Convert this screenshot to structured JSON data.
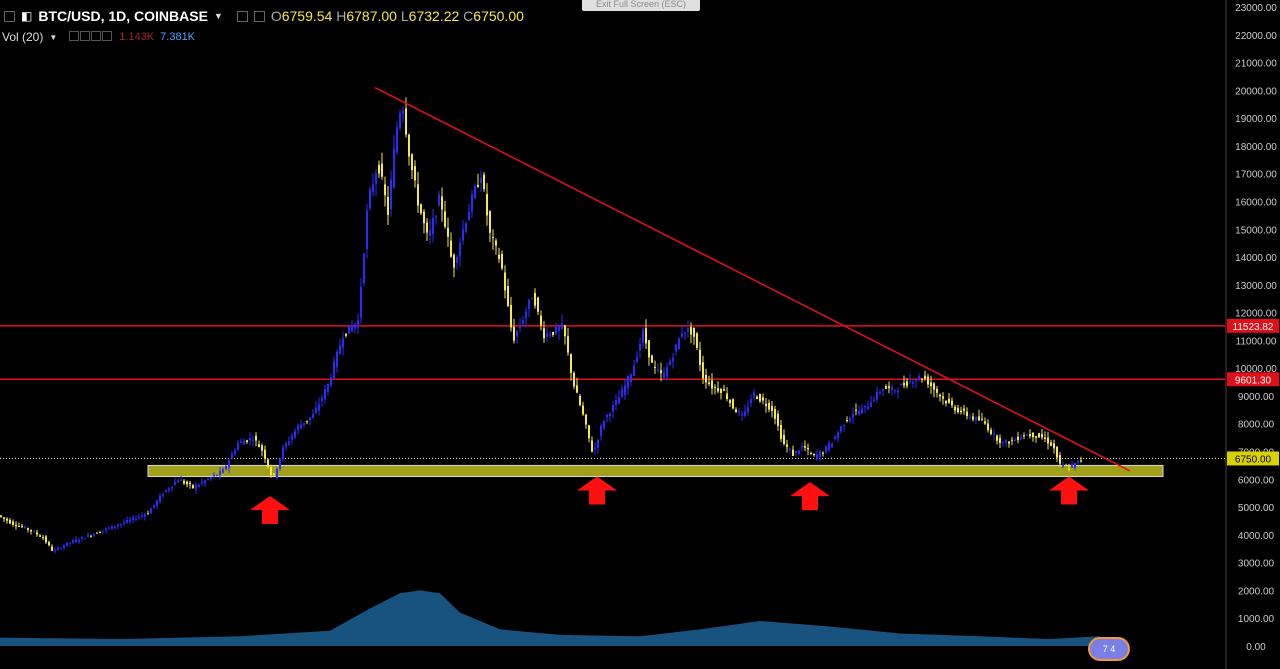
{
  "header": {
    "symbol": "BTC/USD, 1D, COINBASE",
    "open_key": "O",
    "open": "6759.54",
    "high_key": "H",
    "high": "6787.00",
    "low_key": "L",
    "low": "6732.22",
    "close_key": "C",
    "close": "6750.00",
    "volume_label": "Vol (20)",
    "volume_value_1": "1.143K",
    "volume_value_2": "7.381K"
  },
  "exit_fullscreen": "Exit Full Screen (ESC)",
  "colors": {
    "background": "#000000",
    "up_candle": "#2b2bff",
    "down_candle": "#f4e94a",
    "resistance_line": "#e0101b",
    "support_zone": "#bdbd1f",
    "arrow": "#ff1010",
    "volume_area": "#1f6fa8"
  },
  "chart_data": {
    "type": "line",
    "title": "",
    "xlabel": "",
    "ylabel": "",
    "ylim": [
      0,
      23000
    ],
    "y_ticks": [
      "0.00",
      "1000.00",
      "2000.00",
      "3000.00",
      "4000.00",
      "5000.00",
      "6000.00",
      "7000.00",
      "8000.00",
      "9000.00",
      "10000.00",
      "11000.00",
      "12000.00",
      "13000.00",
      "14000.00",
      "15000.00",
      "16000.00",
      "17000.00",
      "18000.00",
      "19000.00",
      "20000.00",
      "21000.00",
      "22000.00",
      "23000.00"
    ],
    "price_series": [
      {
        "t": 0,
        "p": 4700
      },
      {
        "t": 15,
        "p": 4400
      },
      {
        "t": 30,
        "p": 4200
      },
      {
        "t": 45,
        "p": 3900
      },
      {
        "t": 55,
        "p": 3400
      },
      {
        "t": 70,
        "p": 3700
      },
      {
        "t": 85,
        "p": 3900
      },
      {
        "t": 100,
        "p": 4100
      },
      {
        "t": 115,
        "p": 4300
      },
      {
        "t": 130,
        "p": 4500
      },
      {
        "t": 150,
        "p": 4800
      },
      {
        "t": 165,
        "p": 5500
      },
      {
        "t": 180,
        "p": 6000
      },
      {
        "t": 195,
        "p": 5700
      },
      {
        "t": 210,
        "p": 6000
      },
      {
        "t": 225,
        "p": 6300
      },
      {
        "t": 240,
        "p": 7300
      },
      {
        "t": 255,
        "p": 7500
      },
      {
        "t": 265,
        "p": 7000
      },
      {
        "t": 275,
        "p": 6000
      },
      {
        "t": 285,
        "p": 7100
      },
      {
        "t": 300,
        "p": 7900
      },
      {
        "t": 315,
        "p": 8300
      },
      {
        "t": 330,
        "p": 9400
      },
      {
        "t": 345,
        "p": 11200
      },
      {
        "t": 360,
        "p": 11700
      },
      {
        "t": 370,
        "p": 16000
      },
      {
        "t": 380,
        "p": 17400
      },
      {
        "t": 390,
        "p": 15600
      },
      {
        "t": 398,
        "p": 18500
      },
      {
        "t": 404,
        "p": 19700
      },
      {
        "t": 412,
        "p": 17500
      },
      {
        "t": 420,
        "p": 16000
      },
      {
        "t": 430,
        "p": 14600
      },
      {
        "t": 442,
        "p": 16200
      },
      {
        "t": 455,
        "p": 13600
      },
      {
        "t": 465,
        "p": 15000
      },
      {
        "t": 475,
        "p": 16200
      },
      {
        "t": 483,
        "p": 17000
      },
      {
        "t": 492,
        "p": 14800
      },
      {
        "t": 503,
        "p": 13800
      },
      {
        "t": 515,
        "p": 11000
      },
      {
        "t": 525,
        "p": 11800
      },
      {
        "t": 535,
        "p": 12700
      },
      {
        "t": 545,
        "p": 11200
      },
      {
        "t": 555,
        "p": 11300
      },
      {
        "t": 565,
        "p": 11500
      },
      {
        "t": 575,
        "p": 9500
      },
      {
        "t": 585,
        "p": 8300
      },
      {
        "t": 595,
        "p": 6900
      },
      {
        "t": 605,
        "p": 8100
      },
      {
        "t": 615,
        "p": 8600
      },
      {
        "t": 625,
        "p": 9200
      },
      {
        "t": 635,
        "p": 10000
      },
      {
        "t": 645,
        "p": 11300
      },
      {
        "t": 655,
        "p": 10000
      },
      {
        "t": 665,
        "p": 9700
      },
      {
        "t": 675,
        "p": 10500
      },
      {
        "t": 685,
        "p": 11400
      },
      {
        "t": 695,
        "p": 11300
      },
      {
        "t": 705,
        "p": 9700
      },
      {
        "t": 715,
        "p": 9300
      },
      {
        "t": 725,
        "p": 9200
      },
      {
        "t": 735,
        "p": 8600
      },
      {
        "t": 745,
        "p": 8200
      },
      {
        "t": 755,
        "p": 9100
      },
      {
        "t": 765,
        "p": 8800
      },
      {
        "t": 775,
        "p": 8500
      },
      {
        "t": 785,
        "p": 7300
      },
      {
        "t": 795,
        "p": 6900
      },
      {
        "t": 805,
        "p": 7200
      },
      {
        "t": 815,
        "p": 6800
      },
      {
        "t": 825,
        "p": 7000
      },
      {
        "t": 835,
        "p": 7400
      },
      {
        "t": 845,
        "p": 8000
      },
      {
        "t": 855,
        "p": 8400
      },
      {
        "t": 865,
        "p": 8500
      },
      {
        "t": 875,
        "p": 8900
      },
      {
        "t": 885,
        "p": 9300
      },
      {
        "t": 895,
        "p": 9200
      },
      {
        "t": 905,
        "p": 9400
      },
      {
        "t": 915,
        "p": 9600
      },
      {
        "t": 925,
        "p": 9700
      },
      {
        "t": 935,
        "p": 9300
      },
      {
        "t": 945,
        "p": 8900
      },
      {
        "t": 955,
        "p": 8600
      },
      {
        "t": 965,
        "p": 8400
      },
      {
        "t": 975,
        "p": 8200
      },
      {
        "t": 985,
        "p": 8100
      },
      {
        "t": 995,
        "p": 7600
      },
      {
        "t": 1005,
        "p": 7300
      },
      {
        "t": 1015,
        "p": 7400
      },
      {
        "t": 1025,
        "p": 7600
      },
      {
        "t": 1035,
        "p": 7600
      },
      {
        "t": 1045,
        "p": 7500
      },
      {
        "t": 1055,
        "p": 7200
      },
      {
        "t": 1062,
        "p": 6500
      },
      {
        "t": 1072,
        "p": 6400
      },
      {
        "t": 1082,
        "p": 6700
      }
    ],
    "resistance_levels": [
      {
        "price": 11523.82,
        "label": "11523.82"
      },
      {
        "price": 9601.3,
        "label": "9601.30"
      }
    ],
    "current_price": {
      "price": 6750.0,
      "label": "6750.00"
    },
    "support_zone": {
      "from": 6100,
      "to": 6500
    },
    "trendline": {
      "start": {
        "t": 375,
        "p": 20100
      },
      "end": {
        "t": 1130,
        "p": 6300
      }
    },
    "arrow_markers": [
      {
        "t": 270,
        "p": 5400
      },
      {
        "t": 597,
        "p": 6100
      },
      {
        "t": 810,
        "p": 5900
      },
      {
        "t": 1069,
        "p": 6100
      }
    ],
    "volume_profile": [
      {
        "t": 0,
        "v": 0.3
      },
      {
        "t": 120,
        "v": 0.25
      },
      {
        "t": 240,
        "v": 0.35
      },
      {
        "t": 330,
        "v": 0.55
      },
      {
        "t": 370,
        "v": 1.35
      },
      {
        "t": 400,
        "v": 1.9
      },
      {
        "t": 420,
        "v": 2.0
      },
      {
        "t": 440,
        "v": 1.9
      },
      {
        "t": 460,
        "v": 1.2
      },
      {
        "t": 500,
        "v": 0.6
      },
      {
        "t": 560,
        "v": 0.4
      },
      {
        "t": 640,
        "v": 0.35
      },
      {
        "t": 700,
        "v": 0.6
      },
      {
        "t": 760,
        "v": 0.9
      },
      {
        "t": 830,
        "v": 0.7
      },
      {
        "t": 900,
        "v": 0.45
      },
      {
        "t": 980,
        "v": 0.35
      },
      {
        "t": 1050,
        "v": 0.25
      },
      {
        "t": 1100,
        "v": 0.35
      }
    ]
  },
  "watermark": "7 4"
}
